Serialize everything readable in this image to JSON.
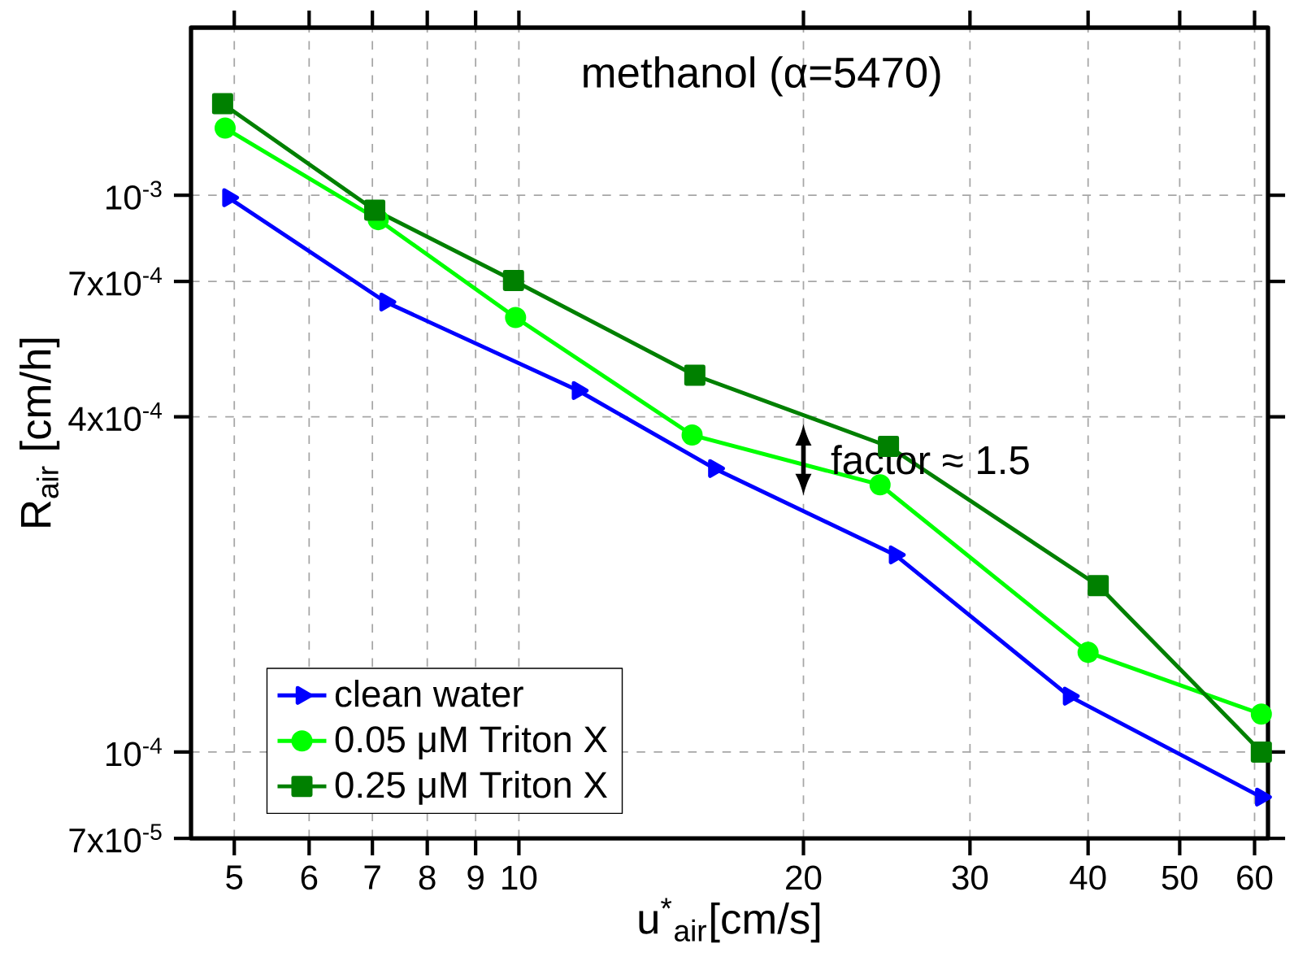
{
  "chart_data": {
    "type": "line",
    "title": "methanol (α=5470)",
    "xlabel": "u$^{*}$$_{air}$[cm/s]",
    "ylabel": "R$_{air}$ [cm/h]",
    "log": "xy",
    "grid": true,
    "legend": "bottom left",
    "xlim": [
      4.5,
      62
    ],
    "ylim": [
      7e-05,
      0.002
    ],
    "xticks": [
      5,
      6,
      7,
      8,
      9,
      10,
      20,
      30,
      40,
      50,
      60
    ],
    "yticks": [
      {
        "value": 7e-05,
        "label": "7x10$^{-5}$"
      },
      {
        "value": 0.0001,
        "label": "10$^{-4}$"
      },
      {
        "value": 0.0004,
        "label": "4x10$^{-4}$"
      },
      {
        "value": 0.0007,
        "label": "7x10$^{-4}$"
      },
      {
        "value": 0.001,
        "label": "10$^{-3}$"
      }
    ],
    "annotations": [
      {
        "text": "factor ≈ 1.5",
        "x": 20,
        "y": 0.000335
      }
    ],
    "series": [
      {
        "name": "clean water",
        "color": "#0000ff",
        "marker": "triangle",
        "x": [
          4.93,
          7.23,
          11.55,
          16.1,
          25.0,
          38.2,
          61
        ],
        "values": [
          0.00099,
          0.000643,
          0.000446,
          0.000323,
          0.000226,
          0.000126,
          8.3e-05
        ]
      },
      {
        "name": "0.05 μM Triton X",
        "color": "#00ff00",
        "marker": "circle",
        "x": [
          4.89,
          7.1,
          9.92,
          15.25,
          24.1,
          40,
          61
        ],
        "values": [
          0.00132,
          0.000904,
          0.000603,
          0.000371,
          0.000302,
          0.000151,
          0.000117
        ]
      },
      {
        "name": "0.25 μM Triton X",
        "color": "#008000",
        "marker": "square",
        "x": [
          4.86,
          7.04,
          9.87,
          15.35,
          24.6,
          41,
          61
        ],
        "values": [
          0.00146,
          0.00094,
          0.000703,
          0.000475,
          0.000354,
          0.000199,
          0.0001
        ]
      }
    ]
  }
}
